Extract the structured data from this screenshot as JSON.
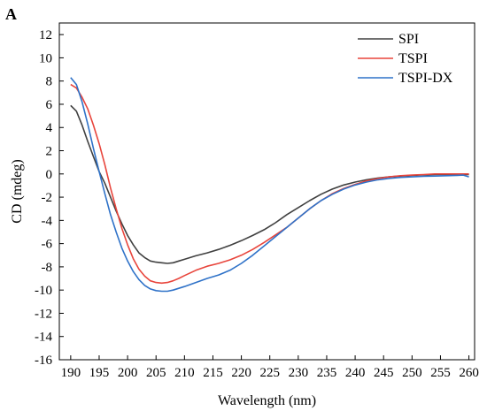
{
  "chart_data": {
    "type": "line",
    "panel_label": "A",
    "xlabel": "Wavelength (nm)",
    "ylabel": "CD (mdeg)",
    "xlim": [
      188,
      261
    ],
    "ylim": [
      -16,
      13
    ],
    "xticks": [
      190,
      195,
      200,
      205,
      210,
      215,
      220,
      225,
      230,
      235,
      240,
      245,
      250,
      255,
      260
    ],
    "yticks": [
      12,
      10,
      8,
      6,
      4,
      2,
      0,
      -2,
      -4,
      -6,
      -8,
      -10,
      -12,
      -14,
      -16
    ],
    "legend_position": "top-right",
    "grid": false,
    "series": [
      {
        "name": "SPI",
        "color": "#404040",
        "x": [
          190,
          191,
          192,
          193,
          194,
          195,
          196,
          197,
          198,
          199,
          200,
          201,
          202,
          203,
          204,
          205,
          206,
          207,
          208,
          209,
          210,
          212,
          214,
          216,
          218,
          220,
          222,
          224,
          226,
          228,
          230,
          232,
          234,
          236,
          238,
          240,
          242,
          244,
          246,
          248,
          250,
          252,
          254,
          256,
          258,
          260
        ],
        "y": [
          5.9,
          5.4,
          4.2,
          2.8,
          1.5,
          0.2,
          -0.8,
          -2.0,
          -3.2,
          -4.3,
          -5.3,
          -6.1,
          -6.8,
          -7.2,
          -7.5,
          -7.6,
          -7.65,
          -7.7,
          -7.65,
          -7.5,
          -7.35,
          -7.05,
          -6.8,
          -6.5,
          -6.15,
          -5.75,
          -5.3,
          -4.8,
          -4.2,
          -3.5,
          -2.9,
          -2.3,
          -1.75,
          -1.3,
          -0.95,
          -0.7,
          -0.5,
          -0.35,
          -0.25,
          -0.18,
          -0.12,
          -0.08,
          -0.05,
          -0.05,
          -0.05,
          -0.05
        ]
      },
      {
        "name": "TSPI",
        "color": "#e8453c",
        "x": [
          190,
          191,
          192,
          193,
          194,
          195,
          196,
          197,
          198,
          199,
          200,
          201,
          202,
          203,
          204,
          205,
          206,
          207,
          208,
          209,
          210,
          212,
          214,
          216,
          218,
          220,
          222,
          224,
          226,
          228,
          230,
          232,
          234,
          236,
          238,
          240,
          242,
          244,
          246,
          248,
          250,
          252,
          254,
          256,
          258,
          260
        ],
        "y": [
          7.7,
          7.4,
          6.6,
          5.6,
          4.2,
          2.6,
          0.8,
          -1.2,
          -3.0,
          -4.7,
          -6.1,
          -7.3,
          -8.2,
          -8.8,
          -9.2,
          -9.35,
          -9.4,
          -9.35,
          -9.2,
          -9.0,
          -8.75,
          -8.3,
          -7.95,
          -7.7,
          -7.4,
          -7.0,
          -6.5,
          -5.9,
          -5.25,
          -4.6,
          -3.8,
          -3.0,
          -2.3,
          -1.7,
          -1.25,
          -0.9,
          -0.6,
          -0.4,
          -0.25,
          -0.15,
          -0.1,
          -0.05,
          0.0,
          0.0,
          0.0,
          0.0
        ]
      },
      {
        "name": "TSPI-DX",
        "color": "#2f72c8",
        "x": [
          190,
          191,
          192,
          193,
          194,
          195,
          196,
          197,
          198,
          199,
          200,
          201,
          202,
          203,
          204,
          205,
          206,
          207,
          208,
          209,
          210,
          212,
          214,
          216,
          218,
          220,
          222,
          224,
          226,
          228,
          230,
          232,
          234,
          236,
          238,
          240,
          242,
          244,
          246,
          248,
          250,
          252,
          254,
          256,
          258,
          259,
          260
        ],
        "y": [
          8.3,
          7.7,
          6.2,
          4.3,
          2.2,
          0.2,
          -1.7,
          -3.5,
          -5.0,
          -6.4,
          -7.5,
          -8.4,
          -9.1,
          -9.6,
          -9.9,
          -10.05,
          -10.1,
          -10.1,
          -10.0,
          -9.85,
          -9.7,
          -9.35,
          -9.0,
          -8.7,
          -8.3,
          -7.7,
          -7.0,
          -6.2,
          -5.4,
          -4.6,
          -3.8,
          -3.0,
          -2.3,
          -1.75,
          -1.3,
          -0.95,
          -0.7,
          -0.5,
          -0.38,
          -0.3,
          -0.25,
          -0.2,
          -0.18,
          -0.15,
          -0.12,
          -0.1,
          -0.25
        ]
      }
    ]
  }
}
